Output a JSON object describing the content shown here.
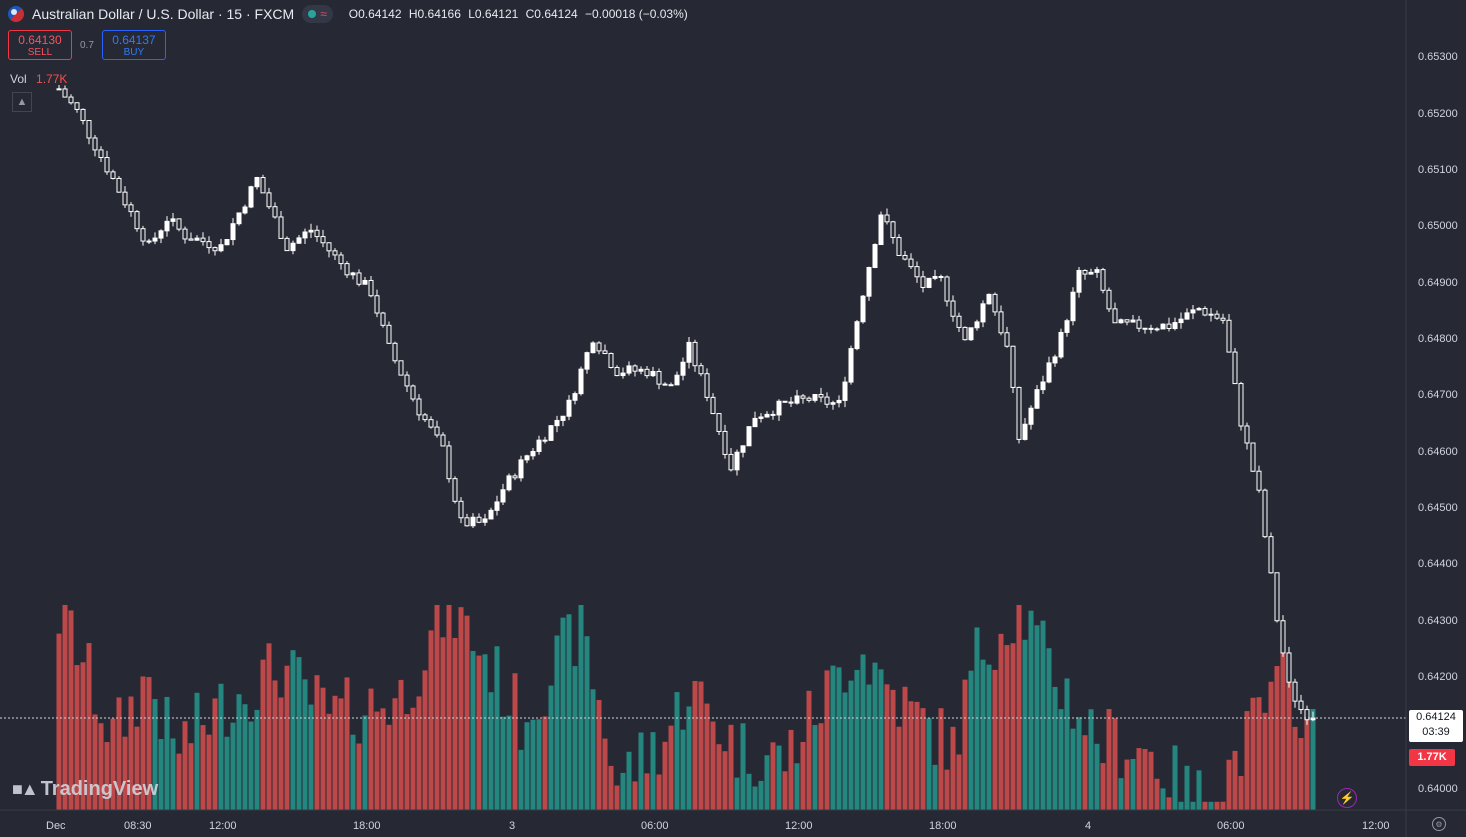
{
  "header": {
    "title": "Australian Dollar / U.S. Dollar · 15 · FXCM",
    "ohlc": {
      "open": "O0.64142",
      "high": "H0.64166",
      "low": "L0.64121",
      "close": "C0.64124",
      "change": "−0.00018 (−0.03%)"
    },
    "status_wave": "≈"
  },
  "trade": {
    "sell_price": "0.64130",
    "sell_label": "SELL",
    "spread": "0.7",
    "buy_price": "0.64137",
    "buy_label": "BUY"
  },
  "volume_legend": {
    "label": "Vol",
    "value": "1.77K"
  },
  "collapse_icon": "chevron-up-icon",
  "price_axis": {
    "ticks": [
      "0.65300",
      "0.65200",
      "0.65100",
      "0.65000",
      "0.64900",
      "0.64800",
      "0.64700",
      "0.64600",
      "0.64500",
      "0.64400",
      "0.64300",
      "0.64200",
      "0.64000"
    ],
    "last_price": "0.64124",
    "countdown": "03:39",
    "volume_label": "1.77K"
  },
  "time_axis": {
    "ticks": [
      "Dec",
      "08:30",
      "12:00",
      "18:00",
      "3",
      "06:00",
      "12:00",
      "18:00",
      "4",
      "06:00",
      "12:00"
    ]
  },
  "watermark": "TradingView",
  "colors": {
    "background": "#262934",
    "candle_up": "#ffffff",
    "candle_down": "#ffffff",
    "volume_up": "#26a69a",
    "volume_down": "#ef5350",
    "sell": "#f23645",
    "buy": "#2962ff"
  },
  "chart_data": {
    "type": "candlestick",
    "symbol": "AUD/USD",
    "interval": "15",
    "ylim": [
      0.6398,
      0.6535
    ],
    "x_range": [
      "Dec 2 06:45",
      "Dec 4 11:00"
    ],
    "close_path": [
      {
        "t": "Dec 2 06:45",
        "v": 0.6524
      },
      {
        "t": "Dec 2 07:30",
        "v": 0.652
      },
      {
        "t": "Dec 2 08:30",
        "v": 0.6512
      },
      {
        "t": "Dec 2 09:30",
        "v": 0.6504
      },
      {
        "t": "Dec 2 10:30",
        "v": 0.6496
      },
      {
        "t": "Dec 2 11:15",
        "v": 0.6501
      },
      {
        "t": "Dec 2 12:00",
        "v": 0.6498
      },
      {
        "t": "Dec 2 13:30",
        "v": 0.6496
      },
      {
        "t": "Dec 2 15:00",
        "v": 0.6508
      },
      {
        "t": "Dec 2 16:15",
        "v": 0.6496
      },
      {
        "t": "Dec 2 17:15",
        "v": 0.6499
      },
      {
        "t": "Dec 2 18:30",
        "v": 0.6493
      },
      {
        "t": "Dec 2 19:45",
        "v": 0.6488
      },
      {
        "t": "Dec 2 20:30",
        "v": 0.6478
      },
      {
        "t": "Dec 2 21:45",
        "v": 0.6467
      },
      {
        "t": "Dec 2 22:45",
        "v": 0.646
      },
      {
        "t": "Dec 2 23:30",
        "v": 0.6447
      },
      {
        "t": "Dec 3 00:30",
        "v": 0.6447
      },
      {
        "t": "Dec 3 01:15",
        "v": 0.6453
      },
      {
        "t": "Dec 3 02:15",
        "v": 0.6459
      },
      {
        "t": "Dec 3 03:15",
        "v": 0.6464
      },
      {
        "t": "Dec 3 04:00",
        "v": 0.6468
      },
      {
        "t": "Dec 3 05:00",
        "v": 0.648
      },
      {
        "t": "Dec 3 06:00",
        "v": 0.6474
      },
      {
        "t": "Dec 3 07:15",
        "v": 0.6474
      },
      {
        "t": "Dec 3 08:15",
        "v": 0.6471
      },
      {
        "t": "Dec 3 09:00",
        "v": 0.6478
      },
      {
        "t": "Dec 3 09:45",
        "v": 0.647
      },
      {
        "t": "Dec 3 10:45",
        "v": 0.6457
      },
      {
        "t": "Dec 3 11:45",
        "v": 0.6466
      },
      {
        "t": "Dec 3 13:00",
        "v": 0.6468
      },
      {
        "t": "Dec 3 14:00",
        "v": 0.6469
      },
      {
        "t": "Dec 3 15:15",
        "v": 0.6468
      },
      {
        "t": "Dec 3 16:15",
        "v": 0.6488
      },
      {
        "t": "Dec 3 17:00",
        "v": 0.6502
      },
      {
        "t": "Dec 3 17:45",
        "v": 0.6495
      },
      {
        "t": "Dec 3 18:45",
        "v": 0.6489
      },
      {
        "t": "Dec 3 19:30",
        "v": 0.649
      },
      {
        "t": "Dec 3 20:30",
        "v": 0.6479
      },
      {
        "t": "Dec 3 21:30",
        "v": 0.6488
      },
      {
        "t": "Dec 3 22:15",
        "v": 0.6478
      },
      {
        "t": "Dec 3 22:45",
        "v": 0.6462
      },
      {
        "t": "Dec 3 23:30",
        "v": 0.647
      },
      {
        "t": "Dec 4 00:30",
        "v": 0.648
      },
      {
        "t": "Dec 4 01:15",
        "v": 0.6491
      },
      {
        "t": "Dec 4 02:00",
        "v": 0.6491
      },
      {
        "t": "Dec 4 02:45",
        "v": 0.6482
      },
      {
        "t": "Dec 4 03:45",
        "v": 0.6482
      },
      {
        "t": "Dec 4 05:00",
        "v": 0.6482
      },
      {
        "t": "Dec 4 06:15",
        "v": 0.6485
      },
      {
        "t": "Dec 4 07:15",
        "v": 0.6483
      },
      {
        "t": "Dec 4 08:00",
        "v": 0.6465
      },
      {
        "t": "Dec 4 08:45",
        "v": 0.6452
      },
      {
        "t": "Dec 4 09:30",
        "v": 0.643
      },
      {
        "t": "Dec 4 10:00",
        "v": 0.6418
      },
      {
        "t": "Dec 4 10:30",
        "v": 0.6414
      },
      {
        "t": "Dec 4 11:00",
        "v": 0.64124
      }
    ],
    "volume_profile": [
      {
        "t": "Dec 2 07:00",
        "v": 0.95
      },
      {
        "t": "Dec 2 09:00",
        "v": 0.35
      },
      {
        "t": "Dec 2 10:30",
        "v": 0.65
      },
      {
        "t": "Dec 2 11:30",
        "v": 0.3
      },
      {
        "t": "Dec 2 14:00",
        "v": 0.55
      },
      {
        "t": "Dec 2 16:00",
        "v": 0.7
      },
      {
        "t": "Dec 2 18:00",
        "v": 0.45
      },
      {
        "t": "Dec 2 21:00",
        "v": 0.55
      },
      {
        "t": "Dec 2 23:00",
        "v": 1.0
      },
      {
        "t": "Dec 3 00:30",
        "v": 0.75
      },
      {
        "t": "Dec 3 02:00",
        "v": 0.45
      },
      {
        "t": "Dec 3 04:30",
        "v": 0.9
      },
      {
        "t": "Dec 3 06:00",
        "v": 0.15
      },
      {
        "t": "Dec 3 08:00",
        "v": 0.35
      },
      {
        "t": "Dec 3 09:00",
        "v": 0.6
      },
      {
        "t": "Dec 3 11:00",
        "v": 0.3
      },
      {
        "t": "Dec 3 13:00",
        "v": 0.25
      },
      {
        "t": "Dec 3 16:00",
        "v": 0.8
      },
      {
        "t": "Dec 3 18:00",
        "v": 0.5
      },
      {
        "t": "Dec 3 20:00",
        "v": 0.3
      },
      {
        "t": "Dec 3 21:00",
        "v": 0.75
      },
      {
        "t": "Dec 3 22:45",
        "v": 1.0
      },
      {
        "t": "Dec 4 00:00",
        "v": 0.7
      },
      {
        "t": "Dec 4 02:00",
        "v": 0.35
      },
      {
        "t": "Dec 4 04:00",
        "v": 0.3
      },
      {
        "t": "Dec 4 06:00",
        "v": 0.05
      },
      {
        "t": "Dec 4 07:00",
        "v": 0.1
      },
      {
        "t": "Dec 4 09:00",
        "v": 0.5
      },
      {
        "t": "Dec 4 10:00",
        "v": 0.65
      },
      {
        "t": "Dec 4 11:00",
        "v": 0.35
      }
    ],
    "last_volume": "1.77K"
  }
}
